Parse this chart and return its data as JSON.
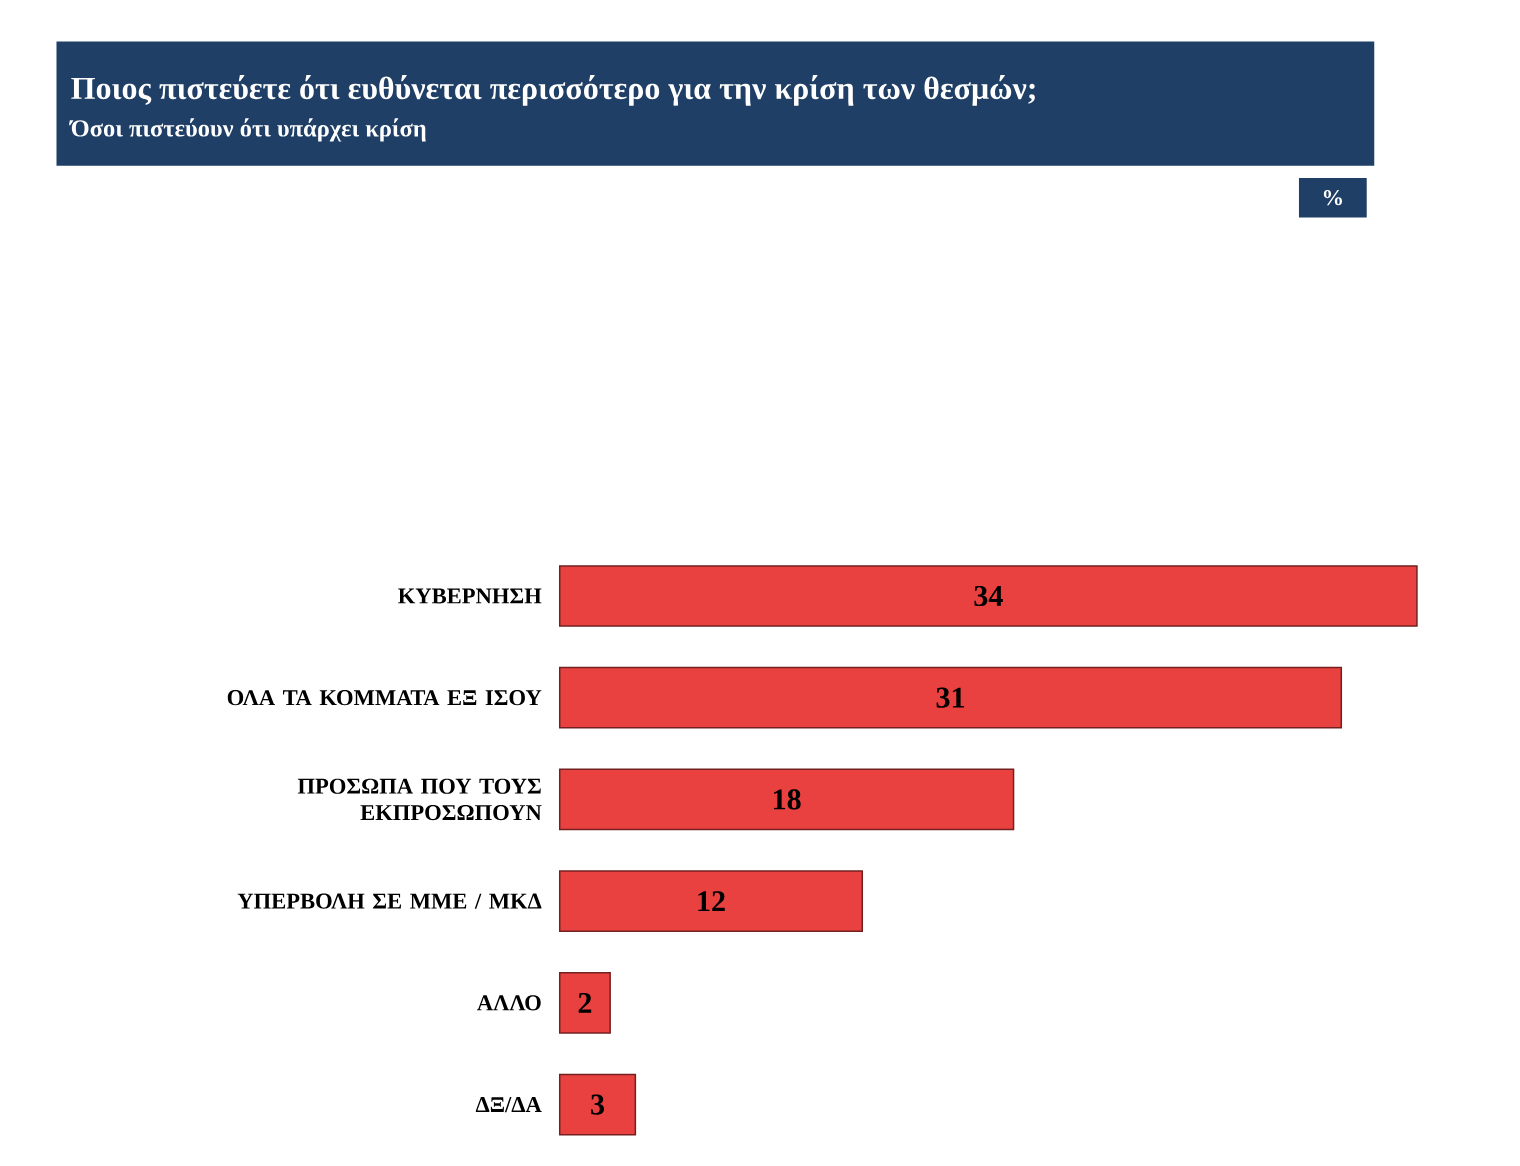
{
  "chart_data": {
    "type": "bar",
    "orientation": "horizontal",
    "title": "Ποιος πιστεύετε ότι ευθύνεται περισσότερο για την κρίση των θεσμών;",
    "subtitle": "Όσοι πιστεύουν ότι υπάρχει κρίση",
    "categories": [
      "ΚΥΒΕΡΝΗΣΗ",
      "ΟΛΑ ΤΑ ΚΟΜΜΑΤΑ ΕΞ ΙΣΟΥ",
      "ΠΡΟΣΩΠΑ ΠΟΥ ΤΟΥΣ ΕΚΠΡΟΣΩΠΟΥΝ",
      "ΥΠΕΡΒΟΛΗ ΣΕ ΜΜΕ / ΜΚΔ",
      "ΑΛΛΟ",
      "ΔΞ/ΔΑ"
    ],
    "values": [
      34,
      31,
      18,
      12,
      2,
      3
    ],
    "color": "#e8413f",
    "data_labels": true,
    "annotations": [
      "%"
    ]
  }
}
